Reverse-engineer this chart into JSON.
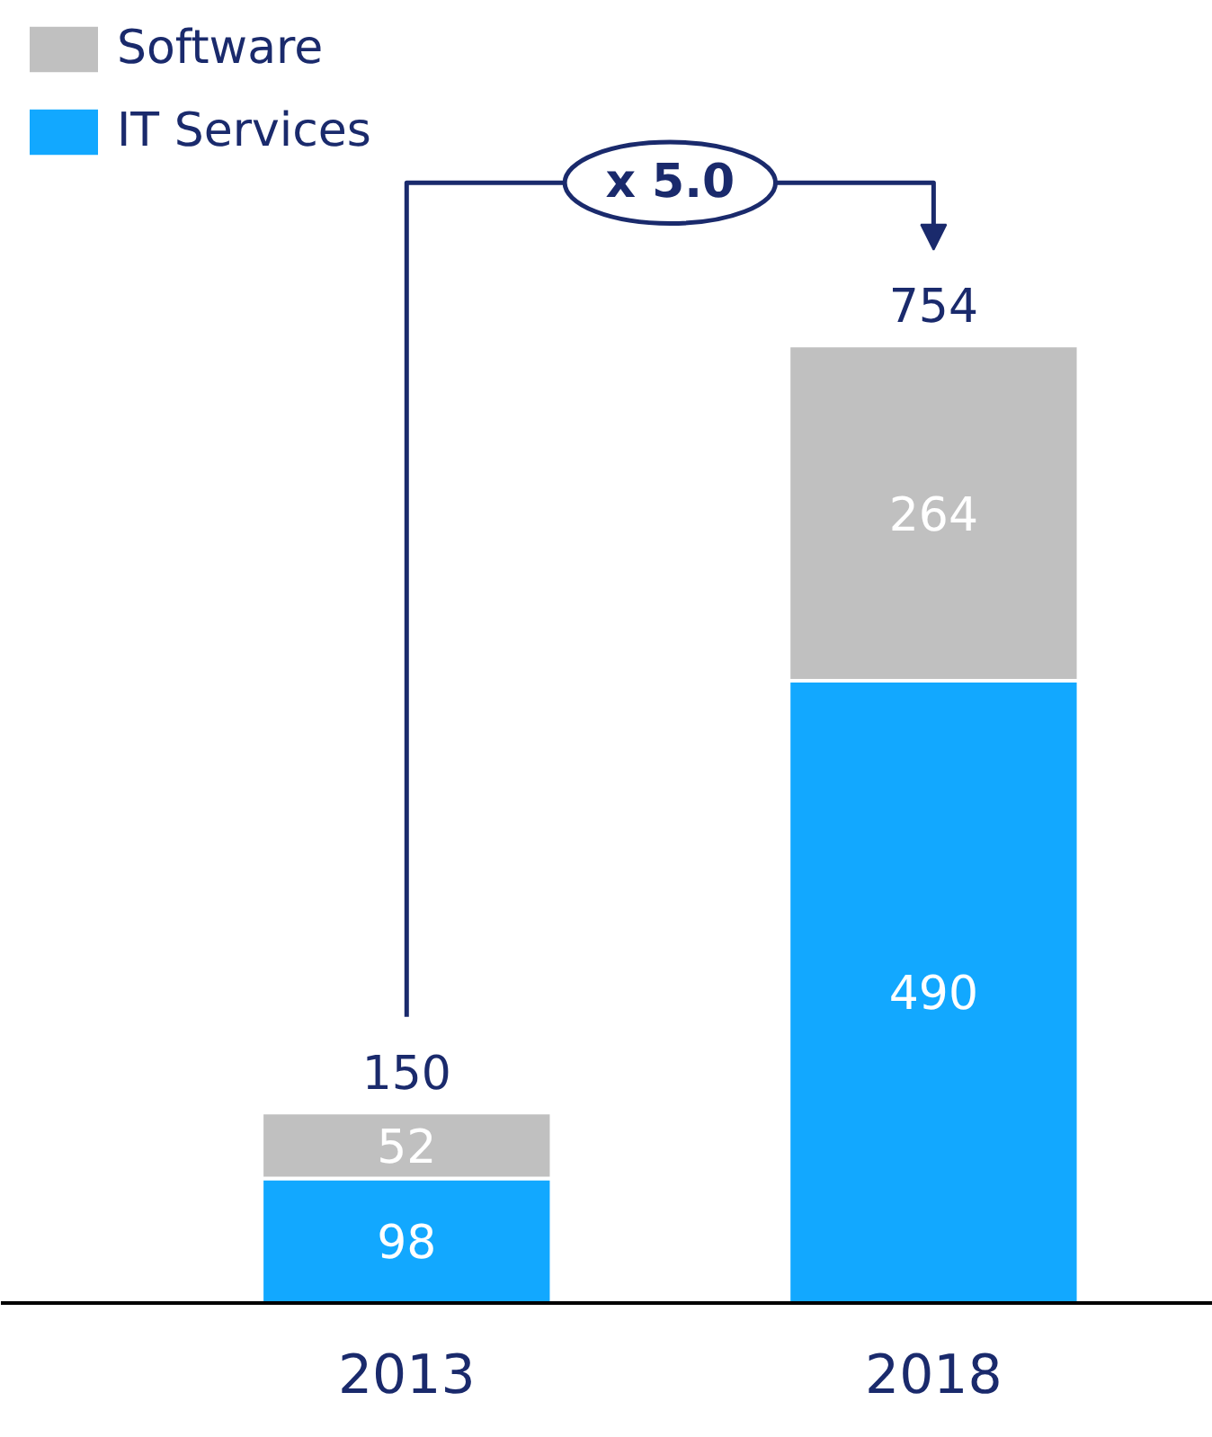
{
  "chart_data": {
    "type": "bar",
    "stacked": true,
    "categories": [
      "2013",
      "2018"
    ],
    "series": [
      {
        "name": "IT Services",
        "color": "#12a8ff",
        "values": [
          98,
          490
        ]
      },
      {
        "name": "Software",
        "color": "#c0c0c0",
        "values": [
          52,
          264
        ]
      }
    ],
    "data_labels": true,
    "totals": [
      "150",
      "754"
    ],
    "annotations": [
      "x 5.0"
    ],
    "legend": "top left",
    "grid": false
  }
}
